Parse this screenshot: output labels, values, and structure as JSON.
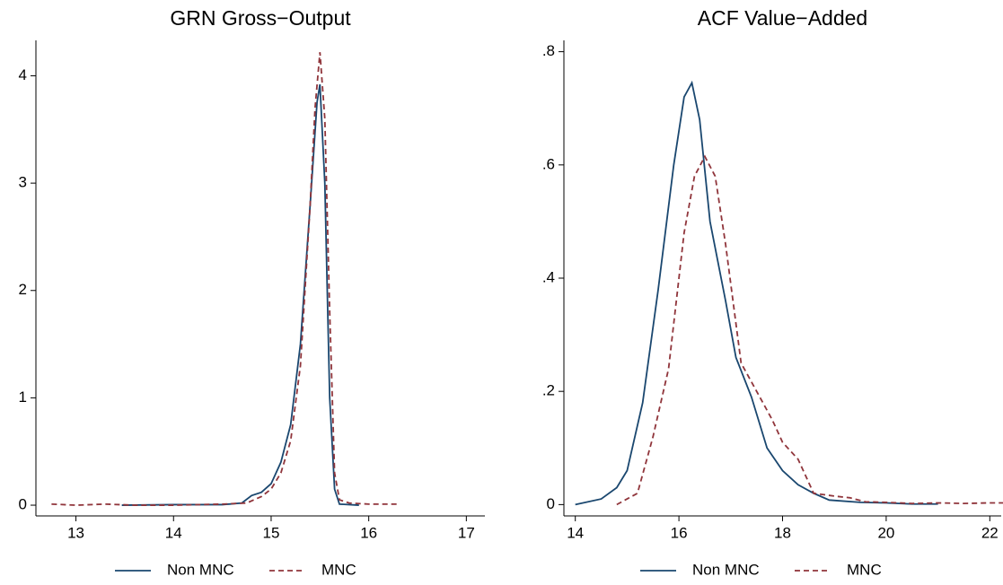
{
  "chart_data": [
    {
      "type": "line",
      "title": "GRN Gross−Output",
      "xlim": [
        12.59,
        17.19
      ],
      "ylim": [
        -0.1,
        4.33
      ],
      "xticks": [
        13,
        14,
        15,
        16,
        17
      ],
      "yticks": [
        0,
        1,
        2,
        3,
        4
      ],
      "legend": "bottom",
      "series": [
        {
          "name": "Non MNC",
          "color": "#1a476f",
          "linestyle": "solid",
          "x": [
            13.47,
            14.0,
            14.5,
            14.7,
            14.8,
            14.9,
            15.0,
            15.1,
            15.2,
            15.3,
            15.4,
            15.47,
            15.5,
            15.55,
            15.6,
            15.65,
            15.7,
            15.9
          ],
          "values": [
            0,
            0.005,
            0.005,
            0.02,
            0.09,
            0.12,
            0.2,
            0.4,
            0.75,
            1.5,
            2.8,
            3.75,
            3.92,
            3.0,
            1.0,
            0.15,
            0.01,
            0
          ]
        },
        {
          "name": "MNC",
          "color": "#90353b",
          "linestyle": "dashed",
          "x": [
            12.75,
            13.0,
            13.3,
            13.6,
            14.0,
            14.5,
            14.75,
            14.9,
            15.0,
            15.1,
            15.2,
            15.3,
            15.4,
            15.45,
            15.5,
            15.55,
            15.6,
            15.65,
            15.7,
            15.8,
            16.0,
            16.3
          ],
          "values": [
            0.01,
            0,
            0.01,
            0,
            0,
            0.01,
            0.02,
            0.08,
            0.15,
            0.3,
            0.6,
            1.3,
            2.8,
            3.7,
            4.22,
            3.6,
            1.8,
            0.3,
            0.05,
            0.02,
            0.01,
            0.01
          ]
        }
      ]
    },
    {
      "type": "line",
      "title": "ACF Value−Added",
      "xlim": [
        13.78,
        22.22
      ],
      "ylim": [
        -0.02,
        0.82
      ],
      "xticks": [
        14,
        16,
        18,
        20,
        22
      ],
      "yticks": [
        0,
        {
          "value": 0.2,
          "label": ".2"
        },
        {
          "value": 0.4,
          "label": ".4"
        },
        {
          "value": 0.6,
          "label": ".6"
        },
        {
          "value": 0.8,
          "label": ".8"
        }
      ],
      "legend": "bottom",
      "series": [
        {
          "name": "Non MNC",
          "color": "#1a476f",
          "linestyle": "solid",
          "x": [
            14.0,
            14.5,
            14.8,
            15.0,
            15.3,
            15.6,
            15.9,
            16.1,
            16.25,
            16.4,
            16.6,
            16.9,
            17.1,
            17.4,
            17.7,
            18.0,
            18.3,
            18.6,
            18.9,
            19.5,
            20.0,
            20.5,
            21.0
          ],
          "values": [
            0,
            0.01,
            0.03,
            0.06,
            0.18,
            0.38,
            0.6,
            0.72,
            0.745,
            0.68,
            0.5,
            0.36,
            0.26,
            0.19,
            0.1,
            0.06,
            0.035,
            0.02,
            0.008,
            0.004,
            0.003,
            0.001,
            0.001
          ]
        },
        {
          "name": "MNC",
          "color": "#90353b",
          "linestyle": "dashed",
          "x": [
            14.8,
            15.2,
            15.5,
            15.8,
            16.1,
            16.3,
            16.5,
            16.7,
            16.9,
            17.2,
            17.5,
            17.8,
            18.0,
            18.3,
            18.6,
            19.0,
            19.3,
            19.6,
            20.0,
            20.5,
            21.0,
            21.5,
            22.0,
            22.4
          ],
          "values": [
            0,
            0.02,
            0.12,
            0.24,
            0.48,
            0.58,
            0.615,
            0.58,
            0.46,
            0.25,
            0.2,
            0.15,
            0.11,
            0.08,
            0.02,
            0.015,
            0.012,
            0.005,
            0.004,
            0.002,
            0.003,
            0.002,
            0.003,
            0.003
          ]
        }
      ]
    }
  ]
}
